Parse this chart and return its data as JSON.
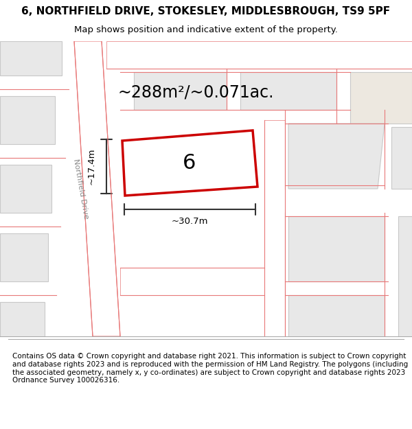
{
  "title_line1": "6, NORTHFIELD DRIVE, STOKESLEY, MIDDLESBROUGH, TS9 5PF",
  "title_line2": "Map shows position and indicative extent of the property.",
  "area_text": "~288m²/~0.071ac.",
  "number_label": "6",
  "dim_width": "~30.7m",
  "dim_height": "~17.4m",
  "road_label": "Northfield Drive",
  "footer_text": "Contains OS data © Crown copyright and database right 2021. This information is subject to Crown copyright and database rights 2023 and is reproduced with the permission of HM Land Registry. The polygons (including the associated geometry, namely x, y co-ordinates) are subject to Crown copyright and database rights 2023 Ordnance Survey 100026316.",
  "bg_color": "#ffffff",
  "map_bg": "#f5f5f5",
  "road_fill": "#ffffff",
  "building_fill": "#e8e8e8",
  "building_stroke": "#c8c8c8",
  "red_line_color": "#cc0000",
  "pink_line_color": "#e87878",
  "dim_line_color": "#333333",
  "road_label_color": "#888888",
  "title_fontsize": 11,
  "subtitle_fontsize": 9.5,
  "area_fontsize": 17,
  "number_fontsize": 22,
  "footer_fontsize": 7.5
}
